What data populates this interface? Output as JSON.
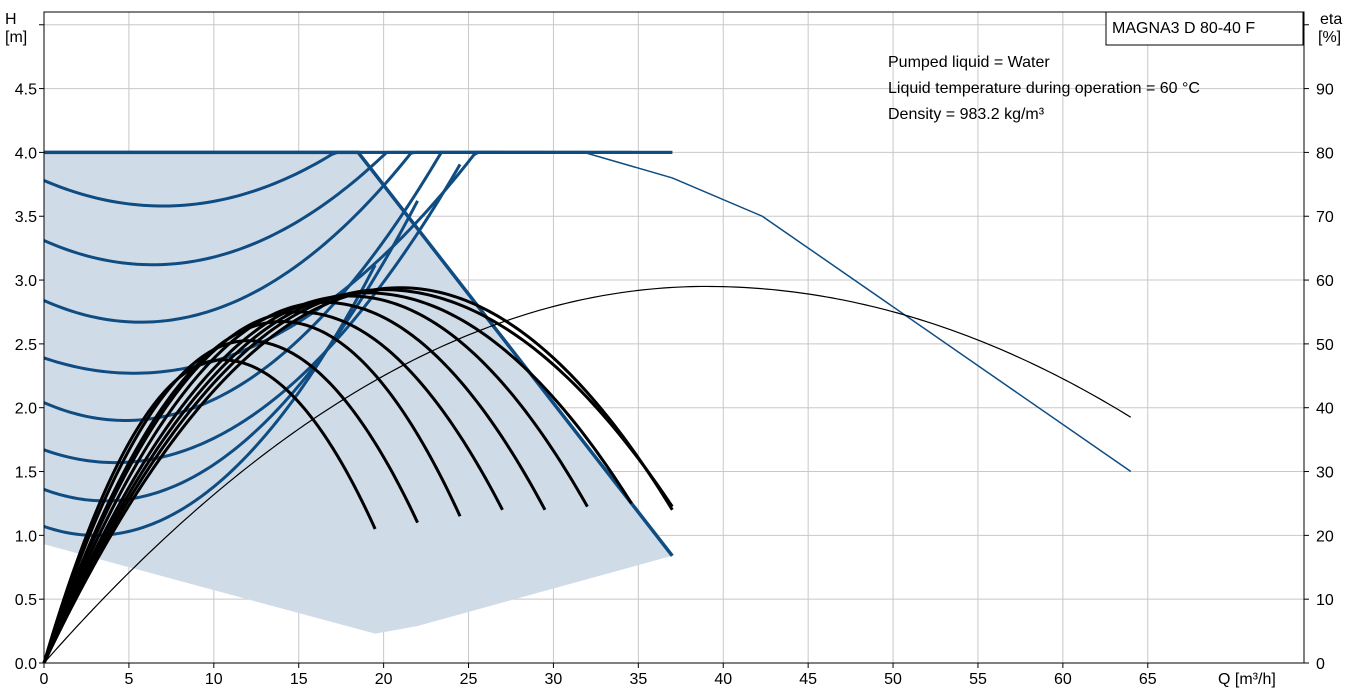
{
  "chart_data": {
    "type": "line",
    "title": "MAGNA3 D 80-40 F",
    "xlabel": "Q [m³/h]",
    "ylabel_left": [
      "H",
      "[m]"
    ],
    "ylabel_right": [
      "eta",
      "[%]"
    ],
    "notes": [
      "Pumped liquid = Water",
      "Liquid temperature during operation = 60 °C",
      "Density = 983.2 kg/m³"
    ],
    "xlim": [
      0,
      74.2
    ],
    "ylim_left": [
      0,
      5.1
    ],
    "ylim_right": [
      0,
      102
    ],
    "x_ticks": [
      0,
      5,
      10,
      15,
      20,
      25,
      30,
      35,
      40,
      45,
      50,
      55,
      60,
      65
    ],
    "x_tick_labels": [
      "0",
      "5",
      "10",
      "15",
      "20",
      "25",
      "30",
      "35",
      "40",
      "45",
      "50",
      "55",
      "60",
      "65"
    ],
    "y_left_ticks": [
      0,
      0.5,
      1.0,
      1.5,
      2.0,
      2.5,
      3.0,
      3.5,
      4.0,
      4.5
    ],
    "y_left_tick_labels": [
      "0.0",
      "0.5",
      "1.0",
      "1.5",
      "2.0",
      "2.5",
      "3.0",
      "3.5",
      "4.0",
      "4.5"
    ],
    "y_right_ticks": [
      0,
      10,
      20,
      30,
      40,
      50,
      60,
      70,
      80,
      90
    ],
    "y_right_tick_labels": [
      "0",
      "10",
      "20",
      "30",
      "40",
      "50",
      "60",
      "70",
      "80",
      "90"
    ],
    "grid": true,
    "colors": {
      "pump_curve": "#0f4c81",
      "operating_area": "#d0dbe8",
      "efficiency": "#000000",
      "grid": "#c8c8c8"
    },
    "operating_area": [
      [
        0,
        4.0
      ],
      [
        18.5,
        4.0
      ],
      [
        37.0,
        0.84
      ],
      [
        22.0,
        0.29
      ],
      [
        19.5,
        0.23
      ],
      [
        0,
        0.93
      ]
    ],
    "max_curve": [
      [
        0,
        4.0
      ],
      [
        31.8,
        4.0
      ],
      [
        37.0,
        3.8
      ],
      [
        42.3,
        3.5
      ],
      [
        64.0,
        1.5
      ]
    ],
    "pump_curves": [
      {
        "h0": 0.93,
        "q_peak": 3.0,
        "h_peak": 1.0,
        "q_end": 19.5
      },
      {
        "h0": 1.18,
        "q_peak": 3.6,
        "h_peak": 1.27,
        "q_end": 22.0
      },
      {
        "h0": 1.47,
        "q_peak": 4.2,
        "h_peak": 1.57,
        "q_end": 24.5
      },
      {
        "h0": 1.76,
        "q_peak": 4.8,
        "h_peak": 1.9,
        "q_end": 27.0
      },
      {
        "h0": 2.15,
        "q_peak": 5.3,
        "h_peak": 2.27,
        "q_end": 29.5
      },
      {
        "h0": 2.5,
        "q_peak": 5.7,
        "h_peak": 2.67,
        "q_end": 32.0
      },
      {
        "h0": 2.93,
        "q_peak": 6.4,
        "h_peak": 3.12,
        "q_end": 34.6
      },
      {
        "h0": 3.38,
        "q_peak": 7.0,
        "h_peak": 3.58,
        "q_end": 37.0
      },
      {
        "h0": 3.85,
        "q_peak": 5.0,
        "h_peak": 4.12,
        "q_end": 37.0
      }
    ],
    "efficiency_curves": [
      {
        "q_end": 19.5,
        "eta_peak": 47.5,
        "q_peak": 10.5,
        "eta_end": 21
      },
      {
        "q_end": 22.0,
        "eta_peak": 50.5,
        "q_peak": 12.0,
        "eta_end": 22
      },
      {
        "q_end": 24.5,
        "eta_peak": 53.5,
        "q_peak": 14.0,
        "eta_end": 23
      },
      {
        "q_end": 27.0,
        "eta_peak": 55.0,
        "q_peak": 15.0,
        "eta_end": 24
      },
      {
        "q_end": 29.5,
        "eta_peak": 56.5,
        "q_peak": 16.5,
        "eta_end": 24
      },
      {
        "q_end": 32.0,
        "eta_peak": 57.5,
        "q_peak": 18.0,
        "eta_end": 24.5
      },
      {
        "q_end": 34.6,
        "eta_peak": 58.0,
        "q_peak": 19.0,
        "eta_end": 25
      },
      {
        "q_end": 37.0,
        "eta_peak": 58.5,
        "q_peak": 20.0,
        "eta_end": 24.5
      },
      {
        "q_end": 37.0,
        "eta_peak": 58.8,
        "q_peak": 21.0,
        "eta_end": 24
      }
    ],
    "efficiency_max": {
      "q_end": 64.0,
      "eta_peak": 59.0,
      "q_peak": 39.0,
      "eta_end": 38.5
    }
  }
}
